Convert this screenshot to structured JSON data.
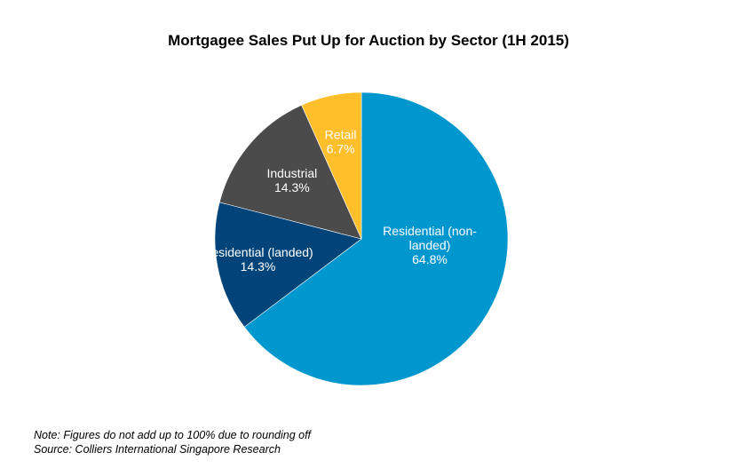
{
  "chart_data": {
    "type": "pie",
    "title": "Mortgagee Sales Put Up for Auction by Sector (1H 2015)",
    "start_angle_deg": 0,
    "direction": "clockwise",
    "slices": [
      {
        "label": "Residential (non-landed)",
        "label_lines": [
          "Residential (non-",
          "landed)"
        ],
        "value": 64.8,
        "display": "64.8%",
        "color": "#0096CE"
      },
      {
        "label": "Residential (landed)",
        "label_lines": [
          "Residential (landed)"
        ],
        "value": 14.3,
        "display": "14.3%",
        "color": "#004479"
      },
      {
        "label": "Industrial",
        "label_lines": [
          "Industrial"
        ],
        "value": 14.3,
        "display": "14.3%",
        "color": "#4B4B4B"
      },
      {
        "label": "Retail",
        "label_lines": [
          "Retail"
        ],
        "value": 6.7,
        "display": "6.7%",
        "color": "#FFBF2A"
      }
    ],
    "legend": "none",
    "data_labels": "inside"
  },
  "footnotes": {
    "note": "Note: Figures do not add up to 100% due to rounding off",
    "source": "Source: Colliers International Singapore Research"
  }
}
